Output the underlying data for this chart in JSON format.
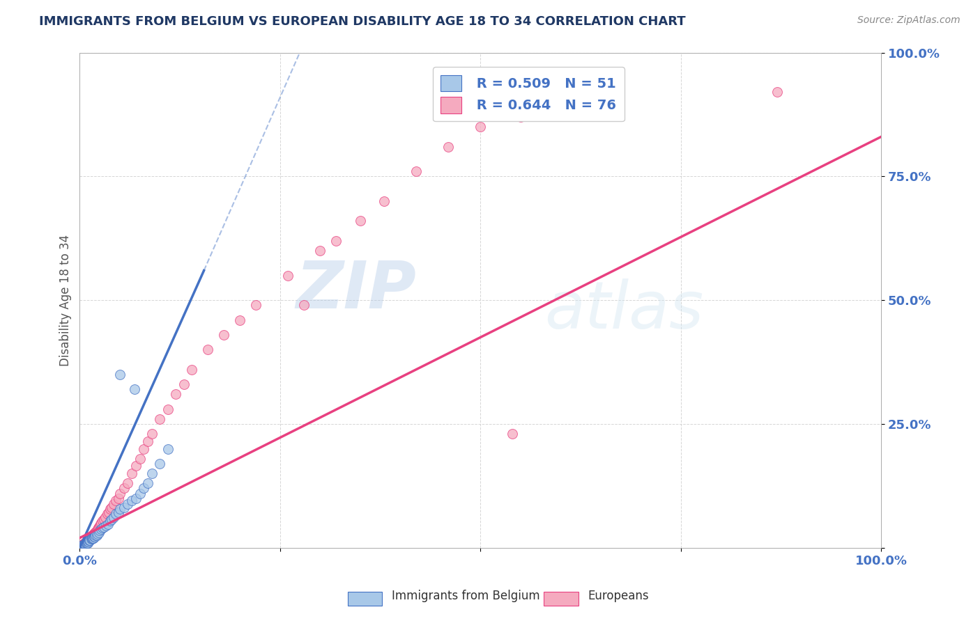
{
  "title": "IMMIGRANTS FROM BELGIUM VS EUROPEAN DISABILITY AGE 18 TO 34 CORRELATION CHART",
  "source_text": "Source: ZipAtlas.com",
  "ylabel": "Disability Age 18 to 34",
  "watermark": "ZIPatlas",
  "xlim": [
    0.0,
    1.0
  ],
  "ylim": [
    0.0,
    1.0
  ],
  "xticks": [
    0.0,
    0.25,
    0.5,
    0.75,
    1.0
  ],
  "xticklabels": [
    "0.0%",
    "",
    "",
    "",
    "100.0%"
  ],
  "yticks": [
    0.0,
    0.25,
    0.5,
    0.75,
    1.0
  ],
  "yticklabels": [
    "",
    "25.0%",
    "50.0%",
    "75.0%",
    "100.0%"
  ],
  "blue_scatter_color": "#A8C8E8",
  "pink_scatter_color": "#F5AABF",
  "blue_line_color": "#4472C4",
  "pink_line_color": "#E84080",
  "blue_R": 0.509,
  "blue_N": 51,
  "pink_R": 0.644,
  "pink_N": 76,
  "legend_label_blue": "Immigrants from Belgium",
  "legend_label_pink": "Europeans",
  "title_color": "#1F3864",
  "axis_tick_color": "#4472C4",
  "ylabel_color": "#555555",
  "grid_color": "#CCCCCC",
  "background_color": "#FFFFFF",
  "blue_regline_x": [
    0.0,
    0.155
  ],
  "blue_regline_y": [
    0.0,
    0.56
  ],
  "blue_dashline_x": [
    0.155,
    0.28
  ],
  "blue_dashline_y": [
    0.56,
    1.02
  ],
  "pink_regline_x": [
    0.0,
    1.0
  ],
  "pink_regline_y": [
    0.02,
    0.83
  ],
  "blue_pts_x": [
    0.003,
    0.004,
    0.005,
    0.006,
    0.006,
    0.007,
    0.007,
    0.008,
    0.008,
    0.009,
    0.01,
    0.01,
    0.011,
    0.012,
    0.012,
    0.013,
    0.014,
    0.015,
    0.015,
    0.016,
    0.017,
    0.018,
    0.019,
    0.02,
    0.021,
    0.022,
    0.024,
    0.025,
    0.027,
    0.028,
    0.03,
    0.033,
    0.035,
    0.038,
    0.04,
    0.042,
    0.045,
    0.048,
    0.05,
    0.055,
    0.06,
    0.065,
    0.07,
    0.075,
    0.08,
    0.085,
    0.09,
    0.1,
    0.11,
    0.05,
    0.068
  ],
  "blue_pts_y": [
    0.005,
    0.005,
    0.006,
    0.006,
    0.007,
    0.007,
    0.008,
    0.008,
    0.01,
    0.01,
    0.01,
    0.012,
    0.012,
    0.015,
    0.015,
    0.015,
    0.018,
    0.018,
    0.02,
    0.02,
    0.02,
    0.022,
    0.022,
    0.025,
    0.025,
    0.028,
    0.03,
    0.035,
    0.038,
    0.04,
    0.042,
    0.045,
    0.048,
    0.055,
    0.058,
    0.062,
    0.068,
    0.072,
    0.078,
    0.082,
    0.088,
    0.095,
    0.1,
    0.11,
    0.12,
    0.13,
    0.15,
    0.17,
    0.2,
    0.35,
    0.32
  ],
  "pink_pts_x": [
    0.002,
    0.003,
    0.004,
    0.005,
    0.005,
    0.006,
    0.006,
    0.007,
    0.007,
    0.008,
    0.008,
    0.009,
    0.009,
    0.01,
    0.01,
    0.011,
    0.012,
    0.012,
    0.013,
    0.014,
    0.015,
    0.015,
    0.016,
    0.017,
    0.018,
    0.019,
    0.02,
    0.021,
    0.022,
    0.023,
    0.024,
    0.025,
    0.026,
    0.027,
    0.028,
    0.03,
    0.032,
    0.034,
    0.036,
    0.038,
    0.04,
    0.042,
    0.045,
    0.048,
    0.05,
    0.055,
    0.06,
    0.065,
    0.07,
    0.075,
    0.08,
    0.085,
    0.09,
    0.1,
    0.11,
    0.12,
    0.13,
    0.14,
    0.16,
    0.18,
    0.2,
    0.22,
    0.26,
    0.3,
    0.32,
    0.35,
    0.38,
    0.42,
    0.46,
    0.5,
    0.55,
    0.6,
    0.65,
    0.87,
    0.28,
    0.54
  ],
  "pink_pts_y": [
    0.005,
    0.005,
    0.006,
    0.006,
    0.008,
    0.008,
    0.009,
    0.01,
    0.01,
    0.012,
    0.012,
    0.013,
    0.015,
    0.015,
    0.016,
    0.018,
    0.018,
    0.02,
    0.02,
    0.022,
    0.022,
    0.025,
    0.025,
    0.028,
    0.028,
    0.03,
    0.032,
    0.035,
    0.038,
    0.04,
    0.042,
    0.045,
    0.048,
    0.05,
    0.055,
    0.058,
    0.062,
    0.068,
    0.072,
    0.078,
    0.082,
    0.088,
    0.095,
    0.1,
    0.11,
    0.12,
    0.13,
    0.15,
    0.165,
    0.18,
    0.2,
    0.215,
    0.23,
    0.26,
    0.28,
    0.31,
    0.33,
    0.36,
    0.4,
    0.43,
    0.46,
    0.49,
    0.55,
    0.6,
    0.62,
    0.66,
    0.7,
    0.76,
    0.81,
    0.85,
    0.87,
    0.88,
    0.89,
    0.92,
    0.49,
    0.23
  ]
}
